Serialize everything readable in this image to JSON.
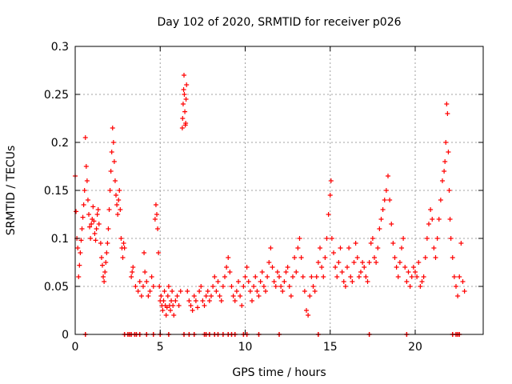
{
  "chart_data": {
    "type": "scatter",
    "title": "Day 102 of 2020, SRMTID for receiver p026",
    "xlabel": "GPS time / hours",
    "ylabel": "SRMTID / TECUs",
    "xlim": [
      0,
      24
    ],
    "ylim": [
      0,
      0.3
    ],
    "x_ticks": [
      0,
      5,
      10,
      15,
      20
    ],
    "x_tick_labels": [
      "0",
      "5",
      "10",
      "15",
      "20"
    ],
    "y_ticks": [
      0,
      0.05,
      0.1,
      0.15,
      0.2,
      0.25,
      0.3
    ],
    "y_tick_labels": [
      "0",
      "0.05",
      "0.1",
      "0.15",
      "0.2",
      "0.25",
      "0.3"
    ],
    "grid": true,
    "marker": "+",
    "marker_color": "#ff0000",
    "zero_points_x": [
      0.6,
      2.9,
      3.1,
      3.2,
      3.3,
      3.5,
      3.6,
      3.8,
      4.2,
      4.6,
      5.0,
      5.5,
      6.4,
      6.7,
      7.0,
      7.6,
      7.7,
      7.9,
      8.2,
      8.4,
      8.7,
      9.0,
      9.2,
      9.4,
      9.9,
      10.1,
      10.8,
      12.0,
      14.3,
      17.3,
      19.5,
      22.2,
      22.4,
      22.5,
      22.6
    ],
    "series": [
      {
        "name": "SRMTID",
        "points": [
          [
            0.0,
            0.165
          ],
          [
            0.05,
            0.128
          ],
          [
            0.1,
            0.1
          ],
          [
            0.15,
            0.09
          ],
          [
            0.2,
            0.06
          ],
          [
            0.25,
            0.072
          ],
          [
            0.3,
            0.085
          ],
          [
            0.35,
            0.098
          ],
          [
            0.4,
            0.11
          ],
          [
            0.45,
            0.122
          ],
          [
            0.5,
            0.135
          ],
          [
            0.55,
            0.15
          ],
          [
            0.6,
            0.205
          ],
          [
            0.65,
            0.175
          ],
          [
            0.7,
            0.16
          ],
          [
            0.75,
            0.14
          ],
          [
            0.8,
            0.125
          ],
          [
            0.85,
            0.112
          ],
          [
            0.9,
            0.1
          ],
          [
            0.95,
            0.115
          ],
          [
            1.0,
            0.12
          ],
          [
            1.05,
            0.133
          ],
          [
            1.1,
            0.118
          ],
          [
            1.15,
            0.105
          ],
          [
            1.2,
            0.098
          ],
          [
            1.25,
            0.11
          ],
          [
            1.3,
            0.125
          ],
          [
            1.35,
            0.13
          ],
          [
            1.4,
            0.115
          ],
          [
            1.5,
            0.095
          ],
          [
            1.55,
            0.08
          ],
          [
            1.6,
            0.072
          ],
          [
            1.65,
            0.06
          ],
          [
            1.7,
            0.055
          ],
          [
            1.75,
            0.065
          ],
          [
            1.8,
            0.075
          ],
          [
            1.85,
            0.085
          ],
          [
            1.9,
            0.095
          ],
          [
            1.95,
            0.11
          ],
          [
            2.0,
            0.13
          ],
          [
            2.05,
            0.15
          ],
          [
            2.1,
            0.17
          ],
          [
            2.15,
            0.19
          ],
          [
            2.2,
            0.215
          ],
          [
            2.25,
            0.2
          ],
          [
            2.3,
            0.18
          ],
          [
            2.35,
            0.16
          ],
          [
            2.4,
            0.145
          ],
          [
            2.45,
            0.135
          ],
          [
            2.5,
            0.125
          ],
          [
            2.55,
            0.14
          ],
          [
            2.6,
            0.15
          ],
          [
            2.65,
            0.13
          ],
          [
            2.7,
            0.1
          ],
          [
            2.75,
            0.09
          ],
          [
            2.8,
            0.08
          ],
          [
            2.85,
            0.095
          ],
          [
            2.9,
            0.09
          ],
          [
            3.3,
            0.06
          ],
          [
            3.35,
            0.065
          ],
          [
            3.4,
            0.07
          ],
          [
            3.55,
            0.05
          ],
          [
            3.7,
            0.045
          ],
          [
            3.8,
            0.055
          ],
          [
            3.9,
            0.04
          ],
          [
            4.0,
            0.05
          ],
          [
            4.05,
            0.085
          ],
          [
            4.1,
            0.065
          ],
          [
            4.2,
            0.055
          ],
          [
            4.3,
            0.04
          ],
          [
            4.4,
            0.045
          ],
          [
            4.5,
            0.06
          ],
          [
            4.6,
            0.05
          ],
          [
            4.7,
            0.12
          ],
          [
            4.75,
            0.135
          ],
          [
            4.8,
            0.125
          ],
          [
            4.85,
            0.11
          ],
          [
            4.9,
            0.085
          ],
          [
            4.95,
            0.05
          ],
          [
            5.0,
            0.035
          ],
          [
            5.05,
            0.04
          ],
          [
            5.1,
            0.03
          ],
          [
            5.15,
            0.025
          ],
          [
            5.2,
            0.035
          ],
          [
            5.25,
            0.045
          ],
          [
            5.3,
            0.03
          ],
          [
            5.35,
            0.02
          ],
          [
            5.4,
            0.028
          ],
          [
            5.45,
            0.04
          ],
          [
            5.5,
            0.05
          ],
          [
            5.55,
            0.03
          ],
          [
            5.6,
            0.025
          ],
          [
            5.65,
            0.035
          ],
          [
            5.7,
            0.045
          ],
          [
            5.75,
            0.03
          ],
          [
            5.8,
            0.02
          ],
          [
            5.9,
            0.035
          ],
          [
            6.0,
            0.04
          ],
          [
            6.1,
            0.03
          ],
          [
            6.2,
            0.045
          ],
          [
            6.3,
            0.215
          ],
          [
            6.32,
            0.225
          ],
          [
            6.35,
            0.24
          ],
          [
            6.38,
            0.255
          ],
          [
            6.4,
            0.27
          ],
          [
            6.42,
            0.25
          ],
          [
            6.45,
            0.232
          ],
          [
            6.48,
            0.218
          ],
          [
            6.5,
            0.22
          ],
          [
            6.52,
            0.245
          ],
          [
            6.55,
            0.26
          ],
          [
            6.6,
            0.045
          ],
          [
            6.7,
            0.035
          ],
          [
            6.8,
            0.03
          ],
          [
            6.9,
            0.025
          ],
          [
            7.0,
            0.04
          ],
          [
            7.1,
            0.035
          ],
          [
            7.2,
            0.028
          ],
          [
            7.3,
            0.045
          ],
          [
            7.4,
            0.05
          ],
          [
            7.5,
            0.035
          ],
          [
            7.6,
            0.03
          ],
          [
            7.7,
            0.04
          ],
          [
            7.8,
            0.045
          ],
          [
            7.9,
            0.035
          ],
          [
            8.0,
            0.04
          ],
          [
            8.1,
            0.05
          ],
          [
            8.2,
            0.06
          ],
          [
            8.3,
            0.045
          ],
          [
            8.4,
            0.055
          ],
          [
            8.5,
            0.04
          ],
          [
            8.6,
            0.035
          ],
          [
            8.7,
            0.05
          ],
          [
            8.8,
            0.06
          ],
          [
            8.9,
            0.07
          ],
          [
            9.0,
            0.08
          ],
          [
            9.1,
            0.065
          ],
          [
            9.2,
            0.05
          ],
          [
            9.3,
            0.04
          ],
          [
            9.4,
            0.035
          ],
          [
            9.5,
            0.045
          ],
          [
            9.6,
            0.055
          ],
          [
            9.7,
            0.04
          ],
          [
            9.8,
            0.03
          ],
          [
            9.9,
            0.05
          ],
          [
            10.0,
            0.06
          ],
          [
            10.1,
            0.07
          ],
          [
            10.2,
            0.055
          ],
          [
            10.3,
            0.045
          ],
          [
            10.4,
            0.035
          ],
          [
            10.5,
            0.05
          ],
          [
            10.6,
            0.06
          ],
          [
            10.7,
            0.045
          ],
          [
            10.8,
            0.04
          ],
          [
            10.9,
            0.055
          ],
          [
            11.0,
            0.065
          ],
          [
            11.1,
            0.05
          ],
          [
            11.2,
            0.045
          ],
          [
            11.3,
            0.06
          ],
          [
            11.4,
            0.075
          ],
          [
            11.5,
            0.09
          ],
          [
            11.6,
            0.07
          ],
          [
            11.7,
            0.055
          ],
          [
            11.8,
            0.05
          ],
          [
            11.9,
            0.065
          ],
          [
            12.0,
            0.06
          ],
          [
            12.1,
            0.05
          ],
          [
            12.2,
            0.045
          ],
          [
            12.3,
            0.055
          ],
          [
            12.4,
            0.065
          ],
          [
            12.5,
            0.07
          ],
          [
            12.6,
            0.05
          ],
          [
            12.7,
            0.04
          ],
          [
            12.8,
            0.06
          ],
          [
            12.9,
            0.08
          ],
          [
            13.0,
            0.065
          ],
          [
            13.1,
            0.09
          ],
          [
            13.2,
            0.1
          ],
          [
            13.3,
            0.08
          ],
          [
            13.4,
            0.06
          ],
          [
            13.5,
            0.045
          ],
          [
            13.6,
            0.025
          ],
          [
            13.7,
            0.02
          ],
          [
            13.8,
            0.04
          ],
          [
            13.9,
            0.06
          ],
          [
            14.0,
            0.05
          ],
          [
            14.1,
            0.045
          ],
          [
            14.2,
            0.06
          ],
          [
            14.3,
            0.075
          ],
          [
            14.4,
            0.09
          ],
          [
            14.5,
            0.07
          ],
          [
            14.6,
            0.06
          ],
          [
            14.7,
            0.08
          ],
          [
            14.8,
            0.1
          ],
          [
            14.9,
            0.125
          ],
          [
            15.0,
            0.145
          ],
          [
            15.05,
            0.16
          ],
          [
            15.1,
            0.1
          ],
          [
            15.2,
            0.085
          ],
          [
            15.3,
            0.07
          ],
          [
            15.4,
            0.06
          ],
          [
            15.5,
            0.075
          ],
          [
            15.6,
            0.09
          ],
          [
            15.7,
            0.065
          ],
          [
            15.8,
            0.055
          ],
          [
            15.9,
            0.05
          ],
          [
            16.0,
            0.07
          ],
          [
            16.1,
            0.09
          ],
          [
            16.2,
            0.06
          ],
          [
            16.3,
            0.055
          ],
          [
            16.4,
            0.075
          ],
          [
            16.5,
            0.095
          ],
          [
            16.6,
            0.08
          ],
          [
            16.7,
            0.06
          ],
          [
            16.8,
            0.065
          ],
          [
            16.9,
            0.075
          ],
          [
            17.0,
            0.07
          ],
          [
            17.1,
            0.06
          ],
          [
            17.2,
            0.055
          ],
          [
            17.3,
            0.075
          ],
          [
            17.4,
            0.095
          ],
          [
            17.5,
            0.1
          ],
          [
            17.6,
            0.08
          ],
          [
            17.7,
            0.075
          ],
          [
            17.8,
            0.09
          ],
          [
            17.9,
            0.11
          ],
          [
            18.0,
            0.12
          ],
          [
            18.1,
            0.13
          ],
          [
            18.2,
            0.14
          ],
          [
            18.3,
            0.15
          ],
          [
            18.4,
            0.165
          ],
          [
            18.5,
            0.14
          ],
          [
            18.6,
            0.115
          ],
          [
            18.7,
            0.095
          ],
          [
            18.8,
            0.08
          ],
          [
            18.9,
            0.07
          ],
          [
            19.0,
            0.06
          ],
          [
            19.1,
            0.075
          ],
          [
            19.2,
            0.09
          ],
          [
            19.3,
            0.1
          ],
          [
            19.4,
            0.07
          ],
          [
            19.5,
            0.055
          ],
          [
            19.6,
            0.065
          ],
          [
            19.7,
            0.05
          ],
          [
            19.8,
            0.06
          ],
          [
            19.9,
            0.07
          ],
          [
            20.0,
            0.065
          ],
          [
            20.1,
            0.06
          ],
          [
            20.2,
            0.075
          ],
          [
            20.3,
            0.05
          ],
          [
            20.4,
            0.055
          ],
          [
            20.5,
            0.06
          ],
          [
            20.6,
            0.08
          ],
          [
            20.7,
            0.1
          ],
          [
            20.8,
            0.115
          ],
          [
            20.9,
            0.13
          ],
          [
            21.0,
            0.12
          ],
          [
            21.1,
            0.09
          ],
          [
            21.2,
            0.08
          ],
          [
            21.3,
            0.1
          ],
          [
            21.4,
            0.12
          ],
          [
            21.5,
            0.14
          ],
          [
            21.6,
            0.16
          ],
          [
            21.7,
            0.17
          ],
          [
            21.75,
            0.18
          ],
          [
            21.8,
            0.2
          ],
          [
            21.85,
            0.24
          ],
          [
            21.9,
            0.23
          ],
          [
            21.95,
            0.19
          ],
          [
            22.0,
            0.15
          ],
          [
            22.05,
            0.12
          ],
          [
            22.1,
            0.1
          ],
          [
            22.2,
            0.08
          ],
          [
            22.3,
            0.06
          ],
          [
            22.4,
            0.05
          ],
          [
            22.5,
            0.04
          ],
          [
            22.6,
            0.06
          ],
          [
            22.7,
            0.095
          ],
          [
            22.8,
            0.055
          ],
          [
            22.9,
            0.045
          ]
        ]
      }
    ]
  }
}
